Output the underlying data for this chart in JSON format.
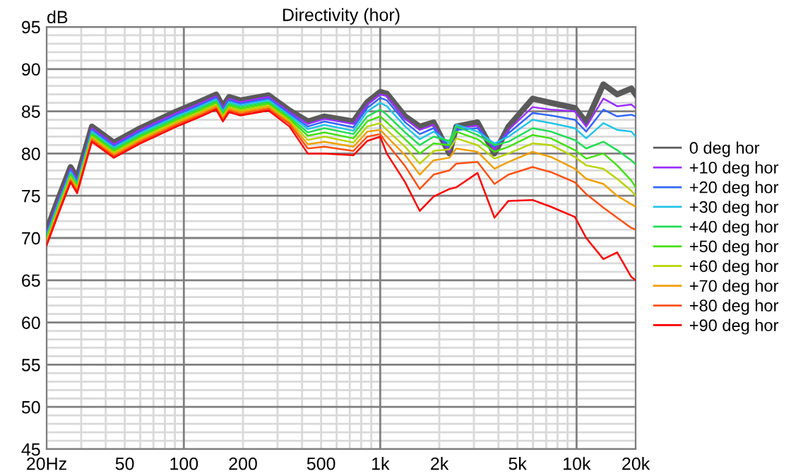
{
  "chart_data": {
    "type": "line",
    "title": "Directivity (hor)",
    "ylabel": "dB",
    "x": [
      20,
      23,
      26.5,
      28.6,
      34,
      44,
      60,
      92,
      117,
      146,
      158,
      170,
      194,
      270,
      345,
      428,
      520,
      730,
      860,
      1000,
      1080,
      1340,
      1590,
      1870,
      2250,
      2440,
      3130,
      3820,
      4500,
      5970,
      7400,
      9800,
      11200,
      13700,
      16100,
      19000,
      20000
    ],
    "series": [
      {
        "name": "0 deg hor",
        "color": "#5a5a5a",
        "values": [
          70.9,
          74.7,
          78.4,
          77.1,
          83.2,
          81.3,
          83.0,
          85.0,
          86.0,
          87.0,
          85.6,
          86.7,
          86.3,
          86.9,
          85.1,
          83.8,
          84.4,
          83.8,
          86.1,
          87.3,
          87.1,
          84.4,
          83.2,
          83.7,
          80.0,
          83.2,
          83.7,
          80.0,
          83.2,
          86.5,
          86.0,
          85.4,
          83.7,
          88.2,
          87.0,
          87.7,
          87.0
        ]
      },
      {
        "name": "+10 deg hor",
        "color": "#9b30ff",
        "values": [
          70.7,
          74.5,
          78.2,
          76.9,
          83.0,
          81.1,
          82.8,
          84.8,
          85.8,
          86.8,
          85.4,
          86.5,
          86.1,
          86.7,
          84.9,
          83.5,
          84.1,
          83.5,
          85.8,
          87.0,
          86.8,
          84.1,
          82.8,
          83.4,
          80.2,
          83.0,
          83.3,
          80.4,
          82.8,
          85.5,
          85.2,
          85.0,
          83.2,
          86.5,
          85.6,
          85.8,
          85.4
        ]
      },
      {
        "name": "+20 deg hor",
        "color": "#3366ff",
        "values": [
          70.5,
          74.3,
          78.0,
          76.7,
          82.8,
          80.9,
          82.6,
          84.6,
          85.6,
          86.6,
          85.2,
          86.3,
          85.9,
          86.5,
          84.7,
          83.2,
          83.8,
          83.1,
          85.4,
          86.6,
          86.3,
          83.7,
          82.3,
          83.0,
          80.6,
          82.8,
          83.0,
          80.8,
          82.4,
          84.8,
          84.5,
          84.0,
          82.6,
          85.2,
          84.4,
          84.6,
          84.4
        ]
      },
      {
        "name": "+30 deg hor",
        "color": "#22c4e8",
        "values": [
          70.3,
          74.1,
          77.8,
          76.5,
          82.6,
          80.7,
          82.4,
          84.4,
          85.4,
          86.4,
          85.0,
          86.1,
          85.7,
          86.3,
          84.5,
          82.9,
          83.4,
          82.7,
          85.0,
          86.0,
          85.6,
          83.2,
          81.7,
          82.6,
          81.2,
          83.4,
          82.6,
          81.2,
          82.0,
          84.0,
          83.6,
          83.0,
          81.8,
          83.6,
          82.8,
          82.6,
          82.0
        ]
      },
      {
        "name": "+40 deg hor",
        "color": "#22dd55",
        "values": [
          70.1,
          73.9,
          77.6,
          76.3,
          82.4,
          80.5,
          82.2,
          84.2,
          85.2,
          86.2,
          84.8,
          85.9,
          85.5,
          86.1,
          84.3,
          82.5,
          83.0,
          82.3,
          84.4,
          85.2,
          84.6,
          82.5,
          81.0,
          82.0,
          81.5,
          83.2,
          82.2,
          81.0,
          81.4,
          83.0,
          82.6,
          81.6,
          80.6,
          81.4,
          80.4,
          79.2,
          78.7
        ]
      },
      {
        "name": "+50 deg hor",
        "color": "#44e010",
        "values": [
          69.9,
          73.7,
          77.4,
          76.1,
          82.2,
          80.3,
          82.0,
          84.0,
          85.0,
          86.0,
          84.6,
          85.7,
          85.3,
          85.9,
          84.1,
          82.1,
          82.5,
          81.8,
          83.8,
          84.4,
          83.7,
          81.7,
          80.0,
          81.2,
          81.0,
          82.6,
          81.7,
          80.2,
          80.8,
          82.2,
          81.8,
          80.4,
          79.4,
          80.0,
          78.6,
          76.8,
          76.0
        ]
      },
      {
        "name": "+60 deg hor",
        "color": "#b8d400",
        "values": [
          69.7,
          73.5,
          77.2,
          75.9,
          82.0,
          80.1,
          81.8,
          83.8,
          84.8,
          85.8,
          84.4,
          85.5,
          85.1,
          85.7,
          83.9,
          81.6,
          82.0,
          81.3,
          83.2,
          83.6,
          82.8,
          80.8,
          78.8,
          80.3,
          80.5,
          81.8,
          81.0,
          79.4,
          80.0,
          81.2,
          81.0,
          79.6,
          78.6,
          78.2,
          77.0,
          75.6,
          75.0
        ]
      },
      {
        "name": "+70 deg hor",
        "color": "#f0a000",
        "values": [
          69.5,
          73.3,
          77.0,
          75.7,
          81.8,
          79.9,
          81.6,
          83.6,
          84.6,
          85.6,
          84.2,
          85.3,
          84.9,
          85.5,
          83.7,
          81.1,
          81.4,
          80.8,
          82.6,
          82.8,
          82.0,
          79.8,
          77.5,
          79.2,
          79.5,
          80.6,
          80.2,
          78.2,
          79.0,
          80.2,
          79.6,
          78.2,
          77.0,
          76.4,
          75.0,
          74.0,
          73.7
        ]
      },
      {
        "name": "+80 deg hor",
        "color": "#ff5010",
        "values": [
          69.3,
          73.1,
          76.8,
          75.5,
          81.6,
          79.7,
          81.4,
          83.4,
          84.4,
          85.4,
          84.0,
          85.1,
          84.7,
          85.3,
          83.5,
          80.6,
          80.8,
          80.3,
          82.0,
          82.3,
          81.2,
          78.5,
          75.8,
          77.5,
          78.0,
          78.8,
          79.0,
          76.4,
          77.5,
          78.4,
          77.8,
          76.6,
          75.2,
          73.6,
          72.4,
          71.2,
          71.0
        ]
      },
      {
        "name": "+90 deg hor",
        "color": "#ff0000",
        "values": [
          69.1,
          72.9,
          76.6,
          75.3,
          81.4,
          79.5,
          81.2,
          83.2,
          84.2,
          85.2,
          83.8,
          84.9,
          84.5,
          85.1,
          83.2,
          80.0,
          80.0,
          79.8,
          81.5,
          82.0,
          80.0,
          76.6,
          73.2,
          74.9,
          75.8,
          76.0,
          77.7,
          72.4,
          74.4,
          74.5,
          73.7,
          72.5,
          70.0,
          67.5,
          68.3,
          65.4,
          65.0
        ]
      }
    ],
    "log": "x",
    "xlim": [
      20,
      20000
    ],
    "xticks": [
      {
        "value": 20,
        "label": "20Hz"
      },
      {
        "value": 30,
        "label": null
      },
      {
        "value": 40,
        "label": null
      },
      50,
      {
        "value": 60,
        "label": null
      },
      {
        "value": 70,
        "label": null
      },
      {
        "value": 80,
        "label": null
      },
      {
        "value": 90,
        "label": null
      },
      100,
      200,
      {
        "value": 300,
        "label": null
      },
      {
        "value": 400,
        "label": null
      },
      500,
      {
        "value": 600,
        "label": null
      },
      {
        "value": 700,
        "label": null
      },
      {
        "value": 800,
        "label": null
      },
      {
        "value": 900,
        "label": null
      },
      {
        "value": 1000,
        "label": "1k"
      },
      {
        "value": 2000,
        "label": "2k"
      },
      {
        "value": 3000,
        "label": null
      },
      {
        "value": 4000,
        "label": null
      },
      {
        "value": 5000,
        "label": "5k"
      },
      {
        "value": 6000,
        "label": null
      },
      {
        "value": 7000,
        "label": null
      },
      {
        "value": 8000,
        "label": null
      },
      {
        "value": 9000,
        "label": null
      },
      {
        "value": 10000,
        "label": "10k"
      },
      {
        "value": 20000,
        "label": "20k"
      }
    ],
    "ylim": [
      45,
      95
    ],
    "yticks": [
      45,
      {
        "value": 46,
        "label": null
      },
      {
        "value": 47,
        "label": null
      },
      {
        "value": 48,
        "label": null
      },
      {
        "value": 49,
        "label": null
      },
      50,
      {
        "value": 51,
        "label": null
      },
      {
        "value": 52,
        "label": null
      },
      {
        "value": 53,
        "label": null
      },
      {
        "value": 54,
        "label": null
      },
      55,
      {
        "value": 56,
        "label": null
      },
      {
        "value": 57,
        "label": null
      },
      {
        "value": 58,
        "label": null
      },
      {
        "value": 59,
        "label": null
      },
      60,
      {
        "value": 61,
        "label": null
      },
      {
        "value": 62,
        "label": null
      },
      {
        "value": 63,
        "label": null
      },
      {
        "value": 64,
        "label": null
      },
      65,
      {
        "value": 66,
        "label": null
      },
      {
        "value": 67,
        "label": null
      },
      {
        "value": 68,
        "label": null
      },
      {
        "value": 69,
        "label": null
      },
      70,
      {
        "value": 71,
        "label": null
      },
      {
        "value": 72,
        "label": null
      },
      {
        "value": 73,
        "label": null
      },
      {
        "value": 74,
        "label": null
      },
      75,
      {
        "value": 76,
        "label": null
      },
      {
        "value": 77,
        "label": null
      },
      {
        "value": 78,
        "label": null
      },
      {
        "value": 79,
        "label": null
      },
      80,
      {
        "value": 81,
        "label": null
      },
      {
        "value": 82,
        "label": null
      },
      {
        "value": 83,
        "label": null
      },
      {
        "value": 84,
        "label": null
      },
      85,
      {
        "value": 86,
        "label": null
      },
      {
        "value": 87,
        "label": null
      },
      {
        "value": 88,
        "label": null
      },
      {
        "value": 89,
        "label": null
      },
      90,
      {
        "value": 91,
        "label": null
      },
      {
        "value": 92,
        "label": null
      },
      {
        "value": 93,
        "label": null
      },
      {
        "value": 94,
        "label": null
      },
      95
    ],
    "grid": true,
    "legend": "right",
    "marker": "none",
    "line_style": "solid"
  }
}
